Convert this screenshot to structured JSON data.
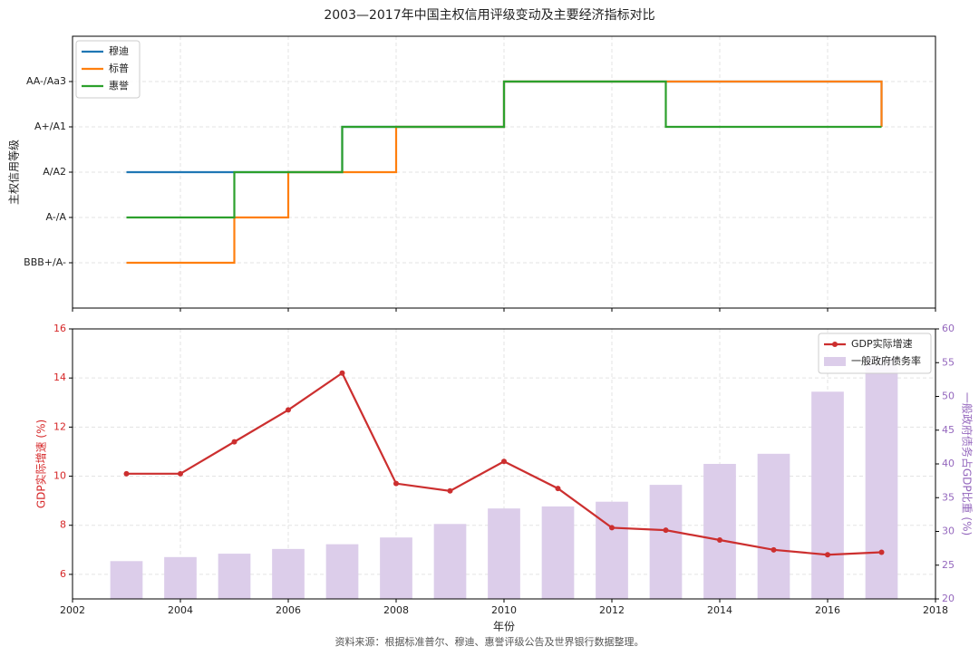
{
  "title": "2003—2017年中国主权信用评级变动及主要经济指标对比",
  "source": "资料来源：根据标准普尔、穆迪、惠誉评级公告及世界银行数据整理。",
  "chart_data": [
    {
      "type": "step",
      "ylabel": "主权信用等级",
      "x": [
        2003,
        2004,
        2005,
        2006,
        2007,
        2008,
        2009,
        2010,
        2011,
        2012,
        2013,
        2014,
        2015,
        2016,
        2017
      ],
      "xlim": [
        2002,
        2018
      ],
      "xticks": [
        2002,
        2004,
        2006,
        2008,
        2010,
        2012,
        2014,
        2016,
        2018
      ],
      "show_xtick_labels": false,
      "ylim": [
        0,
        6
      ],
      "yticks": [
        {
          "value": 1,
          "label": "BBB+/A-"
        },
        {
          "value": 2,
          "label": "A-/A"
        },
        {
          "value": 3,
          "label": "A/A2"
        },
        {
          "value": 4,
          "label": "A+/A1"
        },
        {
          "value": 5,
          "label": "AA-/Aa3"
        }
      ],
      "grid": true,
      "legend": "upper left",
      "series": [
        {
          "name": "穆迪",
          "color": "#1f77b4",
          "values": [
            3,
            3,
            3,
            3,
            4,
            4,
            4,
            5,
            5,
            5,
            5,
            5,
            5,
            5,
            4
          ]
        },
        {
          "name": "标普",
          "color": "#ff7f0e",
          "values": [
            1,
            1,
            2,
            3,
            3,
            4,
            4,
            5,
            5,
            5,
            5,
            5,
            5,
            5,
            4
          ]
        },
        {
          "name": "惠誉",
          "color": "#2ca02c",
          "values": [
            2,
            2,
            3,
            3,
            4,
            4,
            4,
            5,
            5,
            5,
            4,
            4,
            4,
            4,
            4
          ]
        }
      ]
    },
    {
      "type": "line",
      "xlabel": "年份",
      "ylabel": "GDP实际增速 (%)",
      "y2label": "一般政府债务占GDP比重 (%)",
      "ylabel_color": "#d62728",
      "y2label_color": "#9467bd",
      "x": [
        2003,
        2004,
        2005,
        2006,
        2007,
        2008,
        2009,
        2010,
        2011,
        2012,
        2013,
        2014,
        2015,
        2016,
        2017
      ],
      "xlim": [
        2002,
        2018
      ],
      "xticks": [
        2002,
        2004,
        2006,
        2008,
        2010,
        2012,
        2014,
        2016,
        2018
      ],
      "ylim": [
        5,
        16
      ],
      "yticks": [
        6,
        8,
        10,
        12,
        14,
        16
      ],
      "y2lim": [
        20,
        60
      ],
      "y2ticks": [
        20,
        25,
        30,
        35,
        40,
        45,
        50,
        55,
        60
      ],
      "grid": true,
      "legend": "upper right",
      "series": [
        {
          "name": "GDP实际增速",
          "type": "line",
          "color": "#cc2f2f",
          "values": [
            10.1,
            10.1,
            11.4,
            12.7,
            14.2,
            9.7,
            9.4,
            10.6,
            9.5,
            7.9,
            7.8,
            7.4,
            7.0,
            6.8,
            6.9
          ]
        },
        {
          "name": "一般政府债务率",
          "type": "bar",
          "axis": "y2",
          "color": "#dccdea",
          "values": [
            25.6,
            26.2,
            26.7,
            27.4,
            28.1,
            29.1,
            31.1,
            33.4,
            33.7,
            34.4,
            36.9,
            40.0,
            41.5,
            50.7,
            55.8
          ]
        }
      ]
    }
  ]
}
